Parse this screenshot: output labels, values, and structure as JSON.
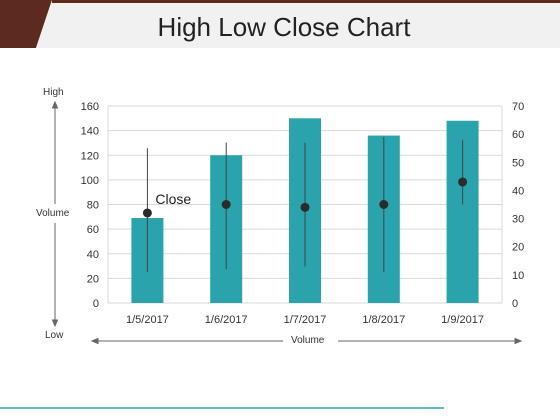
{
  "slide": {
    "title": "High Low Close Chart",
    "colors": {
      "header_dark": "#5c2a1e",
      "header_light": "#f1f1f1",
      "bar": "#2aa3ad",
      "whisker": "#444444",
      "marker": "#2b2b2b",
      "footer_line": "#2aa3ad"
    }
  },
  "axis_labels": {
    "high": "High",
    "low": "Low",
    "vertical_volume": "Volume",
    "horizontal_volume": "Volume"
  },
  "chart_data": {
    "type": "bar",
    "categories": [
      "1/5/2017",
      "1/6/2017",
      "1/7/2017",
      "1/8/2017",
      "1/9/2017"
    ],
    "series": [
      {
        "name": "Volume",
        "axis": "left",
        "kind": "bar",
        "values": [
          69,
          120,
          150,
          136,
          148
        ]
      },
      {
        "name": "High",
        "axis": "right",
        "kind": "line",
        "values": [
          55,
          57,
          57,
          59,
          58
        ]
      },
      {
        "name": "Low",
        "axis": "right",
        "kind": "line",
        "values": [
          11,
          12,
          13,
          11,
          35
        ]
      },
      {
        "name": "Close",
        "axis": "right",
        "kind": "marker",
        "values": [
          32,
          35,
          34,
          35,
          43
        ]
      }
    ],
    "y_left": {
      "lim": [
        0,
        160
      ],
      "ticks": [
        "0",
        "20",
        "40",
        "60",
        "80",
        "100",
        "120",
        "140",
        "160"
      ]
    },
    "y_right": {
      "lim": [
        0,
        70
      ],
      "ticks": [
        "0",
        "10",
        "20",
        "30",
        "40",
        "50",
        "60",
        "70"
      ]
    },
    "annotations": [
      {
        "text": "Close",
        "category_index": 0
      }
    ],
    "grid": true,
    "legend": "none"
  }
}
